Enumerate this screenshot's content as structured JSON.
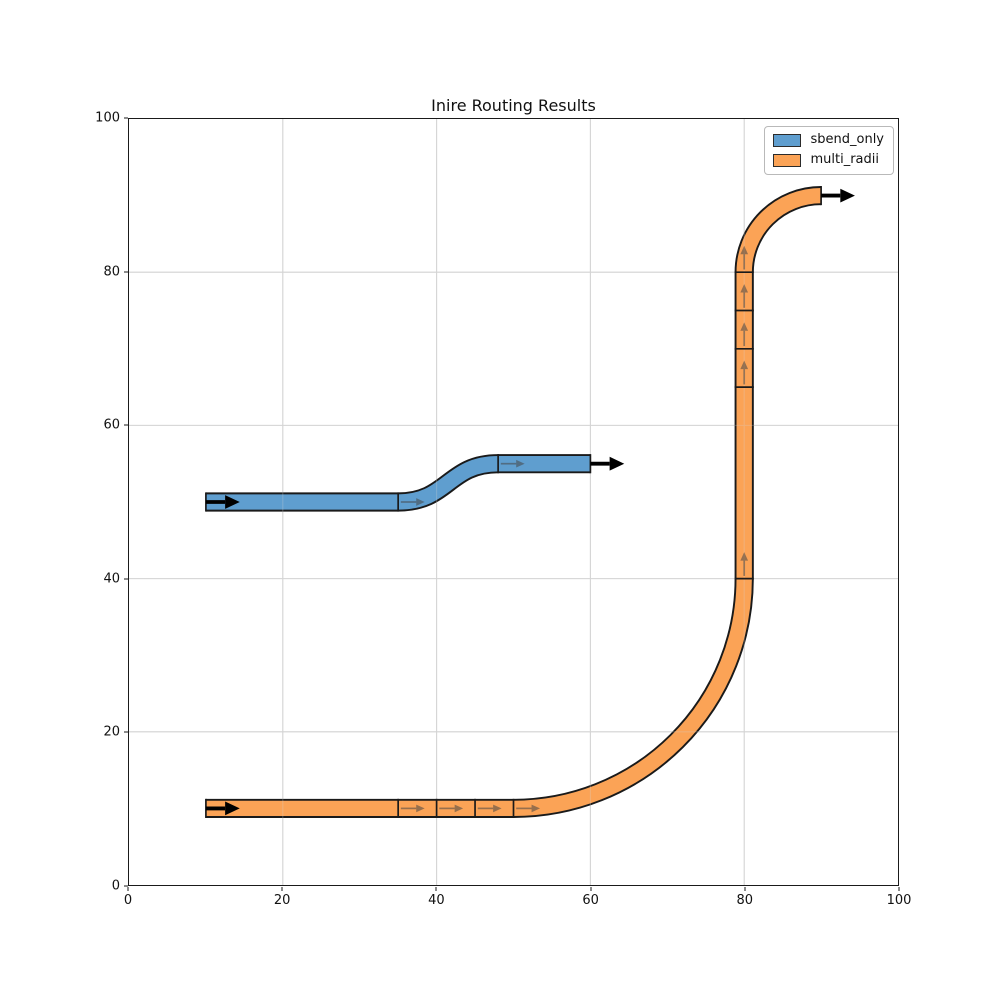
{
  "figure": {
    "title": "Inire Routing Results"
  },
  "axes": {
    "xlim": [
      0,
      100
    ],
    "ylim": [
      0,
      100
    ],
    "xticks": [
      0,
      20,
      40,
      60,
      80,
      100
    ],
    "yticks": [
      0,
      20,
      40,
      60,
      80,
      100
    ],
    "grid": true,
    "grid_color": "#d4d4d4",
    "spine_color": "#1a1a1a"
  },
  "legend": {
    "position": "upper right",
    "entries": [
      {
        "label": "sbend_only",
        "color": "#5f9ecf",
        "edge": "#2b2b2b"
      },
      {
        "label": "multi_radii",
        "color": "#fba356",
        "edge": "#2b2b2b"
      }
    ]
  },
  "chart_data": {
    "type": "line",
    "title": "Inire Routing Results",
    "xlabel": "",
    "ylabel": "",
    "xlim": [
      0,
      100
    ],
    "ylim": [
      0,
      100
    ],
    "grid": true,
    "legend_position": "upper right",
    "routes": [
      {
        "name": "sbend_only",
        "color": "#5f9ecf",
        "edge": "#1a1a1a",
        "width": 2,
        "start_port": [
          10,
          50
        ],
        "end_port": [
          60,
          55
        ],
        "segments": [
          {
            "type": "straight",
            "from": [
              10,
              50
            ],
            "to": [
              35,
              50
            ]
          },
          {
            "type": "sbend",
            "from": [
              35,
              50
            ],
            "to": [
              48,
              55
            ]
          },
          {
            "type": "straight",
            "from": [
              48,
              55
            ],
            "to": [
              60,
              55
            ]
          }
        ],
        "dividers": [
          {
            "x": 10,
            "y": 50,
            "o": "v"
          },
          {
            "x": 35,
            "y": 50,
            "o": "v"
          },
          {
            "x": 48,
            "y": 55,
            "o": "v"
          },
          {
            "x": 60,
            "y": 55,
            "o": "v"
          }
        ],
        "port_arrows": [
          {
            "x": 10,
            "y": 50,
            "dir": "e"
          },
          {
            "x": 60,
            "y": 55,
            "dir": "e"
          }
        ],
        "segment_arrows": [
          {
            "x": 35,
            "y": 50,
            "dir": "e"
          },
          {
            "x": 48,
            "y": 55,
            "dir": "e"
          }
        ]
      },
      {
        "name": "multi_radii",
        "color": "#fba356",
        "edge": "#1a1a1a",
        "width": 2,
        "start_port": [
          10,
          10
        ],
        "end_port": [
          90,
          90
        ],
        "segments": [
          {
            "type": "straight",
            "from": [
              10,
              10
            ],
            "to": [
              35,
              10
            ]
          },
          {
            "type": "straight",
            "from": [
              35,
              10
            ],
            "to": [
              40,
              10
            ]
          },
          {
            "type": "straight",
            "from": [
              40,
              10
            ],
            "to": [
              45,
              10
            ]
          },
          {
            "type": "straight",
            "from": [
              45,
              10
            ],
            "to": [
              50,
              10
            ]
          },
          {
            "type": "arc",
            "from": [
              50,
              10
            ],
            "to": [
              80,
              40
            ],
            "radius": 30,
            "svg_sweep": 0
          },
          {
            "type": "straight",
            "from": [
              80,
              40
            ],
            "to": [
              80,
              65
            ]
          },
          {
            "type": "straight",
            "from": [
              80,
              65
            ],
            "to": [
              80,
              70
            ]
          },
          {
            "type": "straight",
            "from": [
              80,
              70
            ],
            "to": [
              80,
              75
            ]
          },
          {
            "type": "straight",
            "from": [
              80,
              75
            ],
            "to": [
              80,
              80
            ]
          },
          {
            "type": "arc",
            "from": [
              80,
              80
            ],
            "to": [
              90,
              90
            ],
            "radius": 10,
            "svg_sweep": 1
          }
        ],
        "dividers": [
          {
            "x": 10,
            "y": 10,
            "o": "v"
          },
          {
            "x": 35,
            "y": 10,
            "o": "v"
          },
          {
            "x": 40,
            "y": 10,
            "o": "v"
          },
          {
            "x": 45,
            "y": 10,
            "o": "v"
          },
          {
            "x": 50,
            "y": 10,
            "o": "v"
          },
          {
            "x": 80,
            "y": 40,
            "o": "h"
          },
          {
            "x": 80,
            "y": 65,
            "o": "h"
          },
          {
            "x": 80,
            "y": 70,
            "o": "h"
          },
          {
            "x": 80,
            "y": 75,
            "o": "h"
          },
          {
            "x": 80,
            "y": 80,
            "o": "h"
          },
          {
            "x": 90,
            "y": 90,
            "o": "v"
          }
        ],
        "port_arrows": [
          {
            "x": 10,
            "y": 10,
            "dir": "e"
          },
          {
            "x": 90,
            "y": 90,
            "dir": "e"
          }
        ],
        "segment_arrows": [
          {
            "x": 35,
            "y": 10,
            "dir": "e"
          },
          {
            "x": 40,
            "y": 10,
            "dir": "e"
          },
          {
            "x": 45,
            "y": 10,
            "dir": "e"
          },
          {
            "x": 50,
            "y": 10,
            "dir": "e"
          },
          {
            "x": 80,
            "y": 40,
            "dir": "n"
          },
          {
            "x": 80,
            "y": 65,
            "dir": "n"
          },
          {
            "x": 80,
            "y": 70,
            "dir": "n"
          },
          {
            "x": 80,
            "y": 75,
            "dir": "n"
          },
          {
            "x": 80,
            "y": 80,
            "dir": "n"
          }
        ]
      }
    ]
  }
}
